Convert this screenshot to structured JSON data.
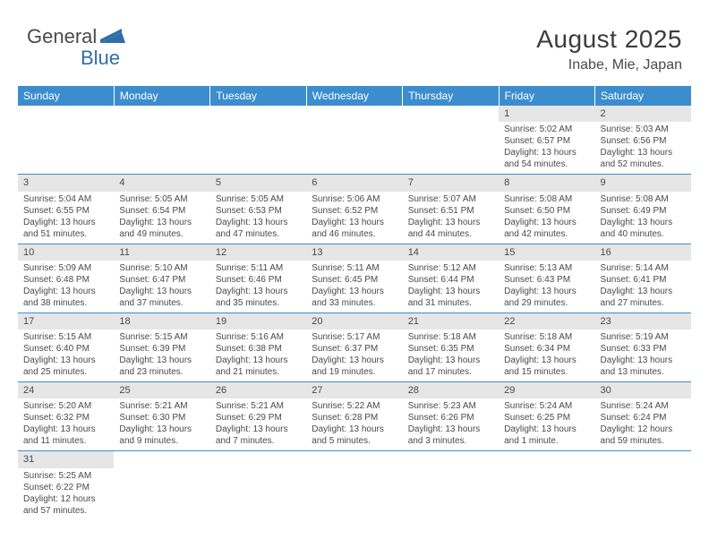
{
  "logo": {
    "part1": "General",
    "part2": "Blue"
  },
  "title": "August 2025",
  "location": "Inabe, Mie, Japan",
  "columns": [
    "Sunday",
    "Monday",
    "Tuesday",
    "Wednesday",
    "Thursday",
    "Friday",
    "Saturday"
  ],
  "colors": {
    "header_bg": "#3c8dce",
    "header_text": "#ffffff",
    "daynum_bg": "#e6e6e6",
    "text": "#4a4a4a",
    "logo_blue": "#2f6fa8",
    "border": "#3c8dce"
  },
  "fonts": {
    "title_size": 28,
    "location_size": 16,
    "dayhead_size": 12,
    "cell_size": 10,
    "daynum_size": 11
  },
  "weeks": [
    [
      null,
      null,
      null,
      null,
      null,
      {
        "n": "1",
        "sr": "5:02 AM",
        "ss": "6:57 PM",
        "dl1": "13 hours",
        "dl2": "and 54 minutes."
      },
      {
        "n": "2",
        "sr": "5:03 AM",
        "ss": "6:56 PM",
        "dl1": "13 hours",
        "dl2": "and 52 minutes."
      }
    ],
    [
      {
        "n": "3",
        "sr": "5:04 AM",
        "ss": "6:55 PM",
        "dl1": "13 hours",
        "dl2": "and 51 minutes."
      },
      {
        "n": "4",
        "sr": "5:05 AM",
        "ss": "6:54 PM",
        "dl1": "13 hours",
        "dl2": "and 49 minutes."
      },
      {
        "n": "5",
        "sr": "5:05 AM",
        "ss": "6:53 PM",
        "dl1": "13 hours",
        "dl2": "and 47 minutes."
      },
      {
        "n": "6",
        "sr": "5:06 AM",
        "ss": "6:52 PM",
        "dl1": "13 hours",
        "dl2": "and 46 minutes."
      },
      {
        "n": "7",
        "sr": "5:07 AM",
        "ss": "6:51 PM",
        "dl1": "13 hours",
        "dl2": "and 44 minutes."
      },
      {
        "n": "8",
        "sr": "5:08 AM",
        "ss": "6:50 PM",
        "dl1": "13 hours",
        "dl2": "and 42 minutes."
      },
      {
        "n": "9",
        "sr": "5:08 AM",
        "ss": "6:49 PM",
        "dl1": "13 hours",
        "dl2": "and 40 minutes."
      }
    ],
    [
      {
        "n": "10",
        "sr": "5:09 AM",
        "ss": "6:48 PM",
        "dl1": "13 hours",
        "dl2": "and 38 minutes."
      },
      {
        "n": "11",
        "sr": "5:10 AM",
        "ss": "6:47 PM",
        "dl1": "13 hours",
        "dl2": "and 37 minutes."
      },
      {
        "n": "12",
        "sr": "5:11 AM",
        "ss": "6:46 PM",
        "dl1": "13 hours",
        "dl2": "and 35 minutes."
      },
      {
        "n": "13",
        "sr": "5:11 AM",
        "ss": "6:45 PM",
        "dl1": "13 hours",
        "dl2": "and 33 minutes."
      },
      {
        "n": "14",
        "sr": "5:12 AM",
        "ss": "6:44 PM",
        "dl1": "13 hours",
        "dl2": "and 31 minutes."
      },
      {
        "n": "15",
        "sr": "5:13 AM",
        "ss": "6:43 PM",
        "dl1": "13 hours",
        "dl2": "and 29 minutes."
      },
      {
        "n": "16",
        "sr": "5:14 AM",
        "ss": "6:41 PM",
        "dl1": "13 hours",
        "dl2": "and 27 minutes."
      }
    ],
    [
      {
        "n": "17",
        "sr": "5:15 AM",
        "ss": "6:40 PM",
        "dl1": "13 hours",
        "dl2": "and 25 minutes."
      },
      {
        "n": "18",
        "sr": "5:15 AM",
        "ss": "6:39 PM",
        "dl1": "13 hours",
        "dl2": "and 23 minutes."
      },
      {
        "n": "19",
        "sr": "5:16 AM",
        "ss": "6:38 PM",
        "dl1": "13 hours",
        "dl2": "and 21 minutes."
      },
      {
        "n": "20",
        "sr": "5:17 AM",
        "ss": "6:37 PM",
        "dl1": "13 hours",
        "dl2": "and 19 minutes."
      },
      {
        "n": "21",
        "sr": "5:18 AM",
        "ss": "6:35 PM",
        "dl1": "13 hours",
        "dl2": "and 17 minutes."
      },
      {
        "n": "22",
        "sr": "5:18 AM",
        "ss": "6:34 PM",
        "dl1": "13 hours",
        "dl2": "and 15 minutes."
      },
      {
        "n": "23",
        "sr": "5:19 AM",
        "ss": "6:33 PM",
        "dl1": "13 hours",
        "dl2": "and 13 minutes."
      }
    ],
    [
      {
        "n": "24",
        "sr": "5:20 AM",
        "ss": "6:32 PM",
        "dl1": "13 hours",
        "dl2": "and 11 minutes."
      },
      {
        "n": "25",
        "sr": "5:21 AM",
        "ss": "6:30 PM",
        "dl1": "13 hours",
        "dl2": "and 9 minutes."
      },
      {
        "n": "26",
        "sr": "5:21 AM",
        "ss": "6:29 PM",
        "dl1": "13 hours",
        "dl2": "and 7 minutes."
      },
      {
        "n": "27",
        "sr": "5:22 AM",
        "ss": "6:28 PM",
        "dl1": "13 hours",
        "dl2": "and 5 minutes."
      },
      {
        "n": "28",
        "sr": "5:23 AM",
        "ss": "6:26 PM",
        "dl1": "13 hours",
        "dl2": "and 3 minutes."
      },
      {
        "n": "29",
        "sr": "5:24 AM",
        "ss": "6:25 PM",
        "dl1": "13 hours",
        "dl2": "and 1 minute."
      },
      {
        "n": "30",
        "sr": "5:24 AM",
        "ss": "6:24 PM",
        "dl1": "12 hours",
        "dl2": "and 59 minutes."
      }
    ],
    [
      {
        "n": "31",
        "sr": "5:25 AM",
        "ss": "6:22 PM",
        "dl1": "12 hours",
        "dl2": "and 57 minutes."
      },
      null,
      null,
      null,
      null,
      null,
      null
    ]
  ],
  "labels": {
    "sunrise": "Sunrise:",
    "sunset": "Sunset:",
    "daylight": "Daylight:"
  }
}
